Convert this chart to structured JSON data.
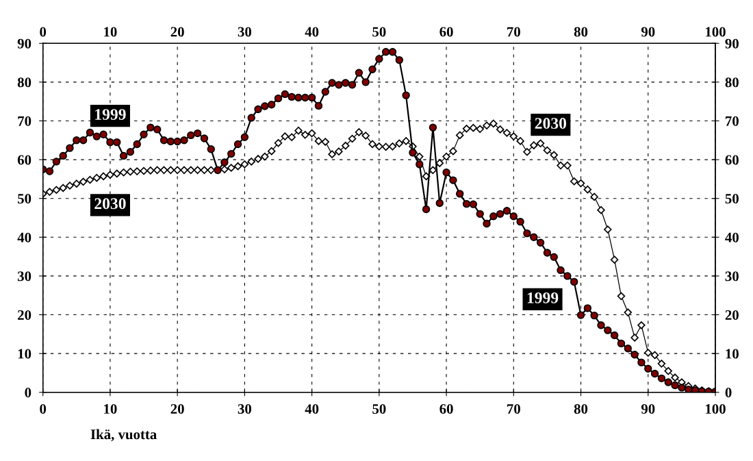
{
  "chart_data": {
    "type": "line",
    "xlabel": "Ikä, vuotta",
    "x": [
      0,
      1,
      2,
      3,
      4,
      5,
      6,
      7,
      8,
      9,
      10,
      11,
      12,
      13,
      14,
      15,
      16,
      17,
      18,
      19,
      20,
      21,
      22,
      23,
      24,
      25,
      26,
      27,
      28,
      29,
      30,
      31,
      32,
      33,
      34,
      35,
      36,
      37,
      38,
      39,
      40,
      41,
      42,
      43,
      44,
      45,
      46,
      47,
      48,
      49,
      50,
      51,
      52,
      53,
      54,
      55,
      56,
      57,
      58,
      59,
      60,
      61,
      62,
      63,
      64,
      65,
      66,
      67,
      68,
      69,
      70,
      71,
      72,
      73,
      74,
      75,
      76,
      77,
      78,
      79,
      80,
      81,
      82,
      83,
      84,
      85,
      86,
      87,
      88,
      89,
      90,
      91,
      92,
      93,
      94,
      95,
      96,
      97,
      98,
      99,
      100
    ],
    "series": [
      {
        "name": "1999",
        "color": "#800000",
        "marker": "circle",
        "values": [
          57.5,
          57,
          59.5,
          61,
          63,
          65,
          65,
          67,
          66,
          66.5,
          64.5,
          64.5,
          61,
          62,
          64,
          66.5,
          68.3,
          67.8,
          65,
          64.7,
          64.7,
          65,
          66.3,
          66.8,
          65.5,
          62.7,
          57.3,
          59.3,
          61.5,
          64,
          65.8,
          70.8,
          73,
          73.8,
          74.2,
          75.8,
          76.9,
          76.2,
          76,
          76,
          76,
          73.9,
          77.5,
          79.8,
          79.3,
          79.8,
          79.3,
          82.4,
          80,
          83.3,
          86,
          87.8,
          87.8,
          85.7,
          76.6,
          61.8,
          58.8,
          47.2,
          68.3,
          48.8,
          56.7,
          54.7,
          51.2,
          48.6,
          48.5,
          46,
          43.5,
          45.4,
          46,
          46.8,
          45.4,
          44,
          41,
          40,
          38.6,
          36,
          34.9,
          31.5,
          30,
          28.5,
          19.9,
          21.7,
          19.8,
          17.3,
          16,
          14.7,
          12.6,
          11.3,
          9.7,
          7.7,
          6.1,
          4.8,
          3.6,
          2.6,
          1.8,
          1.2,
          0.7,
          0.5,
          0.3,
          0.2,
          0.2
        ]
      },
      {
        "name": "2030",
        "color": "#ffffff",
        "marker": "diamond",
        "values": [
          51.2,
          51.7,
          52.2,
          52.7,
          53.3,
          53.8,
          54.3,
          54.8,
          55.3,
          55.7,
          56.1,
          56.4,
          56.7,
          56.9,
          57,
          57.1,
          57.2,
          57.3,
          57.3,
          57.3,
          57.3,
          57.3,
          57.3,
          57.3,
          57.3,
          57.3,
          57.3,
          57.5,
          57.9,
          58.3,
          58.8,
          59.5,
          60.2,
          60.8,
          62.2,
          64.3,
          66,
          65.8,
          67.5,
          66.4,
          66.8,
          64.8,
          64.6,
          61.4,
          62.1,
          63.6,
          65.4,
          67.1,
          66.2,
          64,
          63.4,
          63.3,
          63.4,
          64.2,
          64.8,
          63.4,
          60.8,
          55.7,
          57.3,
          59.1,
          60.8,
          62.2,
          66.3,
          68,
          68.2,
          67.9,
          68.8,
          69.3,
          67.8,
          66.9,
          66,
          64.8,
          62,
          63.7,
          64.2,
          62.4,
          61.2,
          58.5,
          58.5,
          54.4,
          53.9,
          52.3,
          50.4,
          47,
          42,
          34.2,
          24.8,
          20.6,
          14.1,
          17.3,
          10.2,
          9.6,
          7.4,
          5.5,
          3.8,
          2.6,
          1.6,
          1,
          0.5,
          0.3,
          0.2
        ]
      }
    ],
    "xlim": [
      0,
      100
    ],
    "xticks": [
      0,
      10,
      20,
      30,
      40,
      50,
      60,
      70,
      80,
      90,
      100
    ],
    "x2lim": [
      0,
      100
    ],
    "x2ticks": [
      0,
      10,
      20,
      30,
      40,
      50,
      60,
      70,
      80,
      90,
      100
    ],
    "ylim": [
      0,
      90
    ],
    "yticks": [
      0,
      10,
      20,
      30,
      40,
      50,
      60,
      70,
      80,
      90
    ],
    "y2lim": [
      0,
      90
    ],
    "y2ticks": [
      0,
      10,
      20,
      30,
      40,
      50,
      60,
      70,
      80,
      90
    ],
    "grid": true,
    "line_style": "solid",
    "legend": false
  }
}
